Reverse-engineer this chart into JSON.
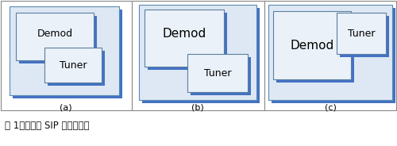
{
  "background": "#ffffff",
  "panel_border": "#888888",
  "outer_box_fill": "#dde8f4",
  "outer_box_edge": "#5a8ab0",
  "shadow_color": "#4472c4",
  "inner_box_fill": "#eaf1f8",
  "inner_box_edge": "#5a7fa0",
  "text_color": "#000000",
  "caption_color": "#111111",
  "caption": "图 1：通常的 SIP 封装方式。",
  "caption_fontsize": 8.5,
  "label_fontsize": 8,
  "inner_fontsize_a": 9,
  "inner_fontsize_bc": 11,
  "label_a": "(a)",
  "label_b": "(b)",
  "label_c": "(c)",
  "demod_text": "Demod",
  "tuner_text": "Tuner"
}
